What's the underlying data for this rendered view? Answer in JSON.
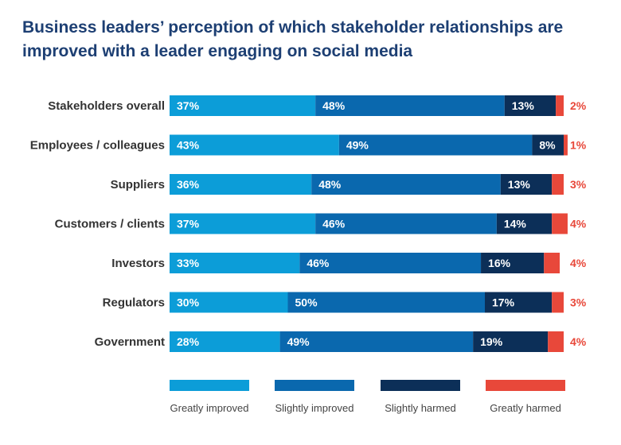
{
  "chart_data": {
    "type": "bar",
    "orientation": "horizontal",
    "stacked": true,
    "title": "Business leaders’ perception of which stakeholder relationships are improved with a leader engaging on social media",
    "categories": [
      "Stakeholders overall",
      "Employees / colleagues",
      "Suppliers",
      "Customers / clients",
      "Investors",
      "Regulators",
      "Government"
    ],
    "series": [
      {
        "name": "Greatly improved",
        "color": "#0c9dd8",
        "values": [
          37,
          43,
          36,
          37,
          33,
          30,
          28
        ]
      },
      {
        "name": "Slightly improved",
        "color": "#0a68ae",
        "values": [
          48,
          49,
          48,
          46,
          46,
          50,
          49
        ]
      },
      {
        "name": "Slightly harmed",
        "color": "#0c2f58",
        "values": [
          13,
          8,
          13,
          14,
          16,
          17,
          19
        ]
      },
      {
        "name": "Greatly harmed",
        "color": "#e8483a",
        "values": [
          2,
          1,
          3,
          4,
          4,
          3,
          4
        ]
      }
    ],
    "value_suffix": "%",
    "legend_position": "bottom",
    "grid": false
  }
}
